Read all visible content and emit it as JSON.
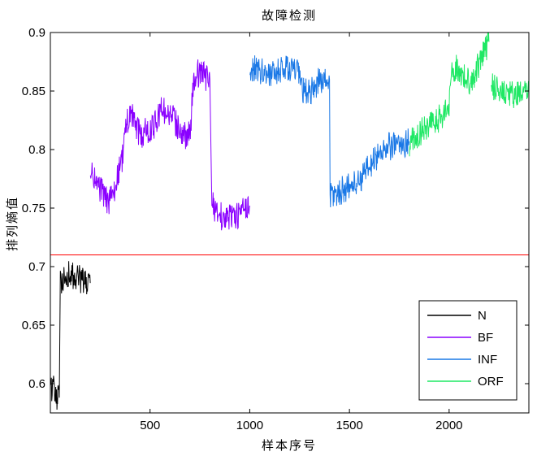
{
  "chart_data": {
    "type": "line",
    "title": "故障检测",
    "xlabel": "样本序号",
    "ylabel": "排列熵值",
    "xlim": [
      0,
      2400
    ],
    "ylim": [
      0.575,
      0.9
    ],
    "xticks": [
      500,
      1000,
      1500,
      2000
    ],
    "yticks": [
      0.6,
      0.65,
      0.7,
      0.75,
      0.8,
      0.85,
      0.9
    ],
    "xtick_labels": [
      "500",
      "1000",
      "1500",
      "2000"
    ],
    "ytick_labels": [
      "0.6",
      "0.65",
      "0.7",
      "0.75",
      "0.8",
      "0.85",
      "0.9"
    ],
    "grid": false,
    "legend_position": "bottom-right",
    "threshold": {
      "value": 0.71,
      "color": "#ff0000"
    },
    "series": [
      {
        "name": "N",
        "color": "#000000",
        "segments": [
          [
            [
              1,
              0.593
            ],
            [
              12,
              0.6
            ],
            [
              25,
              0.59
            ],
            [
              36,
              0.586
            ],
            [
              45,
              0.588
            ],
            [
              50,
              0.69
            ],
            [
              60,
              0.688
            ],
            [
              80,
              0.693
            ],
            [
              100,
              0.694
            ],
            [
              120,
              0.69
            ],
            [
              140,
              0.691
            ],
            [
              160,
              0.688
            ],
            [
              180,
              0.685
            ],
            [
              200,
              0.686
            ]
          ]
        ]
      },
      {
        "name": "BF",
        "color": "#8a00ff",
        "segments": [
          [
            [
              201,
              0.78
            ],
            [
              220,
              0.775
            ],
            [
              245,
              0.768
            ],
            [
              270,
              0.76
            ],
            [
              295,
              0.755
            ],
            [
              320,
              0.762
            ],
            [
              340,
              0.78
            ],
            [
              360,
              0.79
            ],
            [
              380,
              0.822
            ],
            [
              400,
              0.83
            ],
            [
              420,
              0.825
            ],
            [
              440,
              0.815
            ],
            [
              460,
              0.81
            ],
            [
              480,
              0.82
            ],
            [
              500,
              0.815
            ],
            [
              520,
              0.82
            ],
            [
              540,
              0.828
            ],
            [
              560,
              0.835
            ],
            [
              580,
              0.832
            ],
            [
              600,
              0.83
            ],
            [
              620,
              0.825
            ],
            [
              640,
              0.82
            ],
            [
              660,
              0.815
            ],
            [
              680,
              0.81
            ],
            [
              700,
              0.815
            ],
            [
              720,
              0.858
            ],
            [
              740,
              0.865
            ],
            [
              760,
              0.865
            ],
            [
              780,
              0.862
            ],
            [
              800,
              0.86
            ],
            [
              810,
              0.755
            ],
            [
              830,
              0.748
            ],
            [
              850,
              0.745
            ],
            [
              870,
              0.74
            ],
            [
              890,
              0.742
            ],
            [
              910,
              0.745
            ],
            [
              930,
              0.742
            ],
            [
              950,
              0.745
            ],
            [
              970,
              0.748
            ],
            [
              990,
              0.75
            ],
            [
              1000,
              0.752
            ]
          ]
        ]
      },
      {
        "name": "INF",
        "color": "#1a78e6",
        "segments": [
          [
            [
              1001,
              0.87
            ],
            [
              1040,
              0.868
            ],
            [
              1080,
              0.866
            ],
            [
              1120,
              0.864
            ],
            [
              1160,
              0.868
            ],
            [
              1200,
              0.87
            ],
            [
              1240,
              0.866
            ],
            [
              1260,
              0.852
            ],
            [
              1290,
              0.848
            ],
            [
              1320,
              0.852
            ],
            [
              1350,
              0.86
            ],
            [
              1380,
              0.858
            ],
            [
              1400,
              0.86
            ],
            [
              1403,
              0.76
            ],
            [
              1430,
              0.762
            ],
            [
              1460,
              0.765
            ],
            [
              1490,
              0.768
            ],
            [
              1520,
              0.77
            ],
            [
              1550,
              0.774
            ],
            [
              1580,
              0.78
            ],
            [
              1610,
              0.788
            ],
            [
              1640,
              0.795
            ],
            [
              1680,
              0.802
            ],
            [
              1720,
              0.803
            ],
            [
              1760,
              0.804
            ],
            [
              1800,
              0.807
            ]
          ]
        ]
      },
      {
        "name": "ORF",
        "color": "#1ee864",
        "segments": [
          [
            [
              1801,
              0.806
            ],
            [
              1840,
              0.812
            ],
            [
              1880,
              0.818
            ],
            [
              1920,
              0.822
            ],
            [
              1960,
              0.828
            ],
            [
              2000,
              0.835
            ],
            [
              2010,
              0.868
            ],
            [
              2040,
              0.87
            ],
            [
              2070,
              0.862
            ],
            [
              2100,
              0.858
            ],
            [
              2130,
              0.865
            ],
            [
              2160,
              0.878
            ],
            [
              2190,
              0.888
            ],
            [
              2200,
              0.892
            ]
          ],
          [
            [
              2210,
              0.856
            ],
            [
              2240,
              0.852
            ],
            [
              2270,
              0.85
            ],
            [
              2300,
              0.848
            ],
            [
              2330,
              0.846
            ],
            [
              2360,
              0.847
            ],
            [
              2400,
              0.848
            ]
          ]
        ]
      }
    ]
  }
}
